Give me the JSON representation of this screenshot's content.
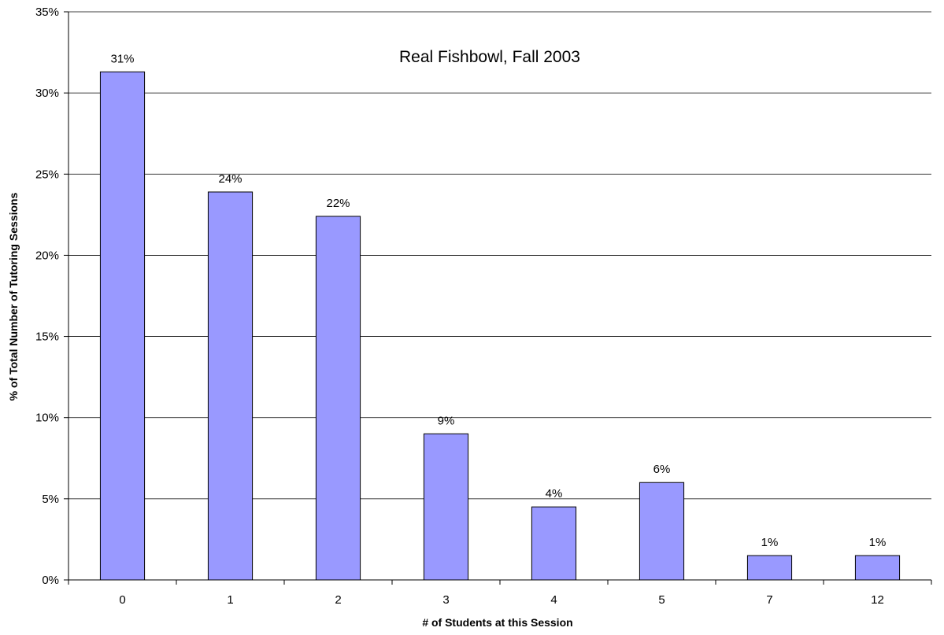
{
  "chart_data": {
    "type": "bar",
    "title": "Real Fishbowl, Fall 2003",
    "xlabel": "# of Students at this Session",
    "ylabel": "% of Total Number of Tutoring Sessions",
    "categories": [
      "0",
      "1",
      "2",
      "3",
      "4",
      "5",
      "7",
      "12"
    ],
    "values": [
      31.3,
      23.9,
      22.4,
      9.0,
      4.5,
      6.0,
      1.5,
      1.5
    ],
    "data_labels": [
      "31%",
      "24%",
      "22%",
      "9%",
      "4%",
      "6%",
      "1%",
      "1%"
    ],
    "ylim": [
      0,
      35
    ],
    "yticks": [
      0,
      5,
      10,
      15,
      20,
      25,
      30,
      35
    ],
    "ytick_labels": [
      "0%",
      "5%",
      "10%",
      "15%",
      "20%",
      "25%",
      "30%",
      "35%"
    ],
    "grid": true,
    "legend": "none",
    "colors": {
      "bar_fill": "#9999ff",
      "bar_stroke": "#000000",
      "gridline": "#000000"
    }
  }
}
